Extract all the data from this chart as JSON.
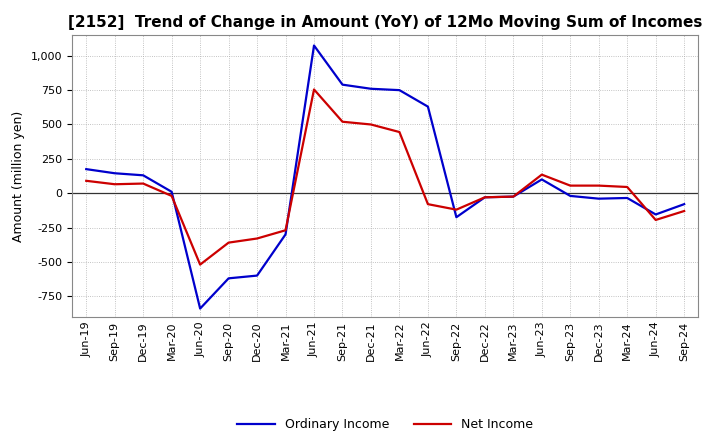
{
  "title": "[2152]  Trend of Change in Amount (YoY) of 12Mo Moving Sum of Incomes",
  "ylabel": "Amount (million yen)",
  "background_color": "#ffffff",
  "grid_color": "#b0b0b0",
  "ordinary_income_color": "#0000cc",
  "net_income_color": "#cc0000",
  "line_width": 1.6,
  "x_labels": [
    "Jun-19",
    "Sep-19",
    "Dec-19",
    "Mar-20",
    "Jun-20",
    "Sep-20",
    "Dec-20",
    "Mar-21",
    "Jun-21",
    "Sep-21",
    "Dec-21",
    "Mar-22",
    "Jun-22",
    "Sep-22",
    "Dec-22",
    "Mar-23",
    "Jun-23",
    "Sep-23",
    "Dec-23",
    "Mar-24",
    "Jun-24",
    "Sep-24"
  ],
  "ordinary_income": [
    175,
    145,
    130,
    10,
    -840,
    -620,
    -600,
    -300,
    1075,
    790,
    760,
    750,
    630,
    -175,
    -30,
    -25,
    100,
    -20,
    -40,
    -35,
    -155,
    -80
  ],
  "net_income": [
    90,
    65,
    70,
    -20,
    -520,
    -360,
    -330,
    -270,
    755,
    520,
    500,
    445,
    -80,
    -120,
    -30,
    -25,
    135,
    55,
    55,
    45,
    -195,
    -130
  ],
  "ylim": [
    -900,
    1150
  ],
  "yticks": [
    -750,
    -500,
    -250,
    0,
    250,
    500,
    750,
    1000
  ],
  "title_fontsize": 11,
  "label_fontsize": 8,
  "ylabel_fontsize": 9,
  "legend_fontsize": 9
}
